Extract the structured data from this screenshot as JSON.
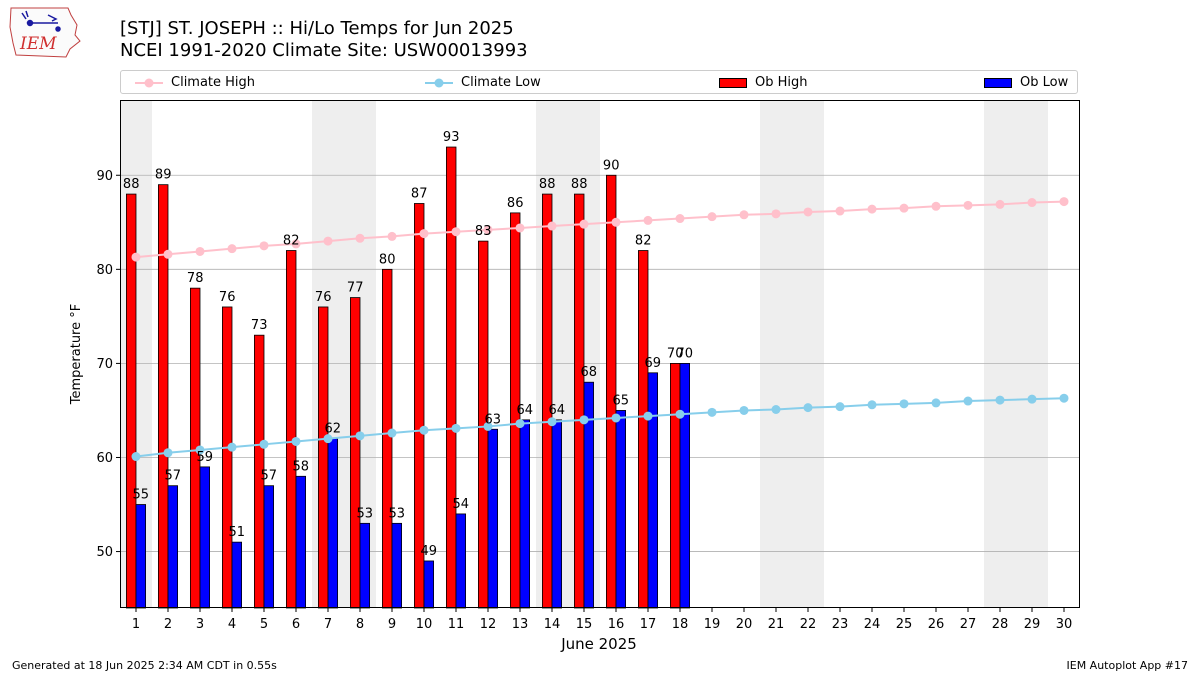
{
  "header": {
    "title": "[STJ] ST. JOSEPH :: Hi/Lo Temps for Jun 2025",
    "subtitle": "NCEI 1991-2020 Climate Site: USW00013993"
  },
  "logo": {
    "text": "IEM"
  },
  "footer": {
    "left": "Generated at 18 Jun 2025 2:34 AM CDT in 0.55s",
    "right": "IEM Autoplot App #17"
  },
  "colors": {
    "climate_high": "#ffc0cb",
    "climate_low": "#87ceeb",
    "ob_high": "#ff0000",
    "ob_low": "#0000ff",
    "weekend_shade": "#eeeeee"
  },
  "chart_data": {
    "type": "bar",
    "xlabel": "June 2025",
    "ylabel": "Temperature °F",
    "ylim": [
      44,
      98
    ],
    "xlim": [
      0.5,
      30.5
    ],
    "yticks": [
      50,
      60,
      70,
      80,
      90
    ],
    "grid": "horizontal",
    "legend": "top, above plot",
    "days": [
      1,
      2,
      3,
      4,
      5,
      6,
      7,
      8,
      9,
      10,
      11,
      12,
      13,
      14,
      15,
      16,
      17,
      18,
      19,
      20,
      21,
      22,
      23,
      24,
      25,
      26,
      27,
      28,
      29,
      30
    ],
    "weekend_days": [
      1,
      7,
      8,
      14,
      15,
      21,
      22,
      28,
      29
    ],
    "series": [
      {
        "name": "Climate High",
        "kind": "line",
        "values": [
          81.3,
          81.6,
          81.9,
          82.2,
          82.5,
          82.7,
          83.0,
          83.3,
          83.5,
          83.8,
          84.0,
          84.2,
          84.4,
          84.6,
          84.8,
          85.0,
          85.2,
          85.4,
          85.6,
          85.8,
          85.9,
          86.1,
          86.2,
          86.4,
          86.5,
          86.7,
          86.8,
          86.9,
          87.1,
          87.2
        ]
      },
      {
        "name": "Climate Low",
        "kind": "line",
        "values": [
          60.1,
          60.5,
          60.8,
          61.1,
          61.4,
          61.7,
          62.0,
          62.3,
          62.6,
          62.9,
          63.1,
          63.3,
          63.6,
          63.8,
          64.0,
          64.2,
          64.4,
          64.6,
          64.8,
          65.0,
          65.1,
          65.3,
          65.4,
          65.6,
          65.7,
          65.8,
          66.0,
          66.1,
          66.2,
          66.3
        ]
      },
      {
        "name": "Ob High",
        "kind": "bar",
        "values": [
          88,
          89,
          78,
          76,
          73,
          82,
          76,
          77,
          80,
          87,
          93,
          83,
          86,
          88,
          88,
          90,
          82,
          70
        ]
      },
      {
        "name": "Ob Low",
        "kind": "bar",
        "values": [
          55,
          57,
          59,
          51,
          57,
          58,
          62,
          53,
          53,
          49,
          54,
          63,
          64,
          64,
          68,
          65,
          69,
          70
        ]
      }
    ]
  }
}
